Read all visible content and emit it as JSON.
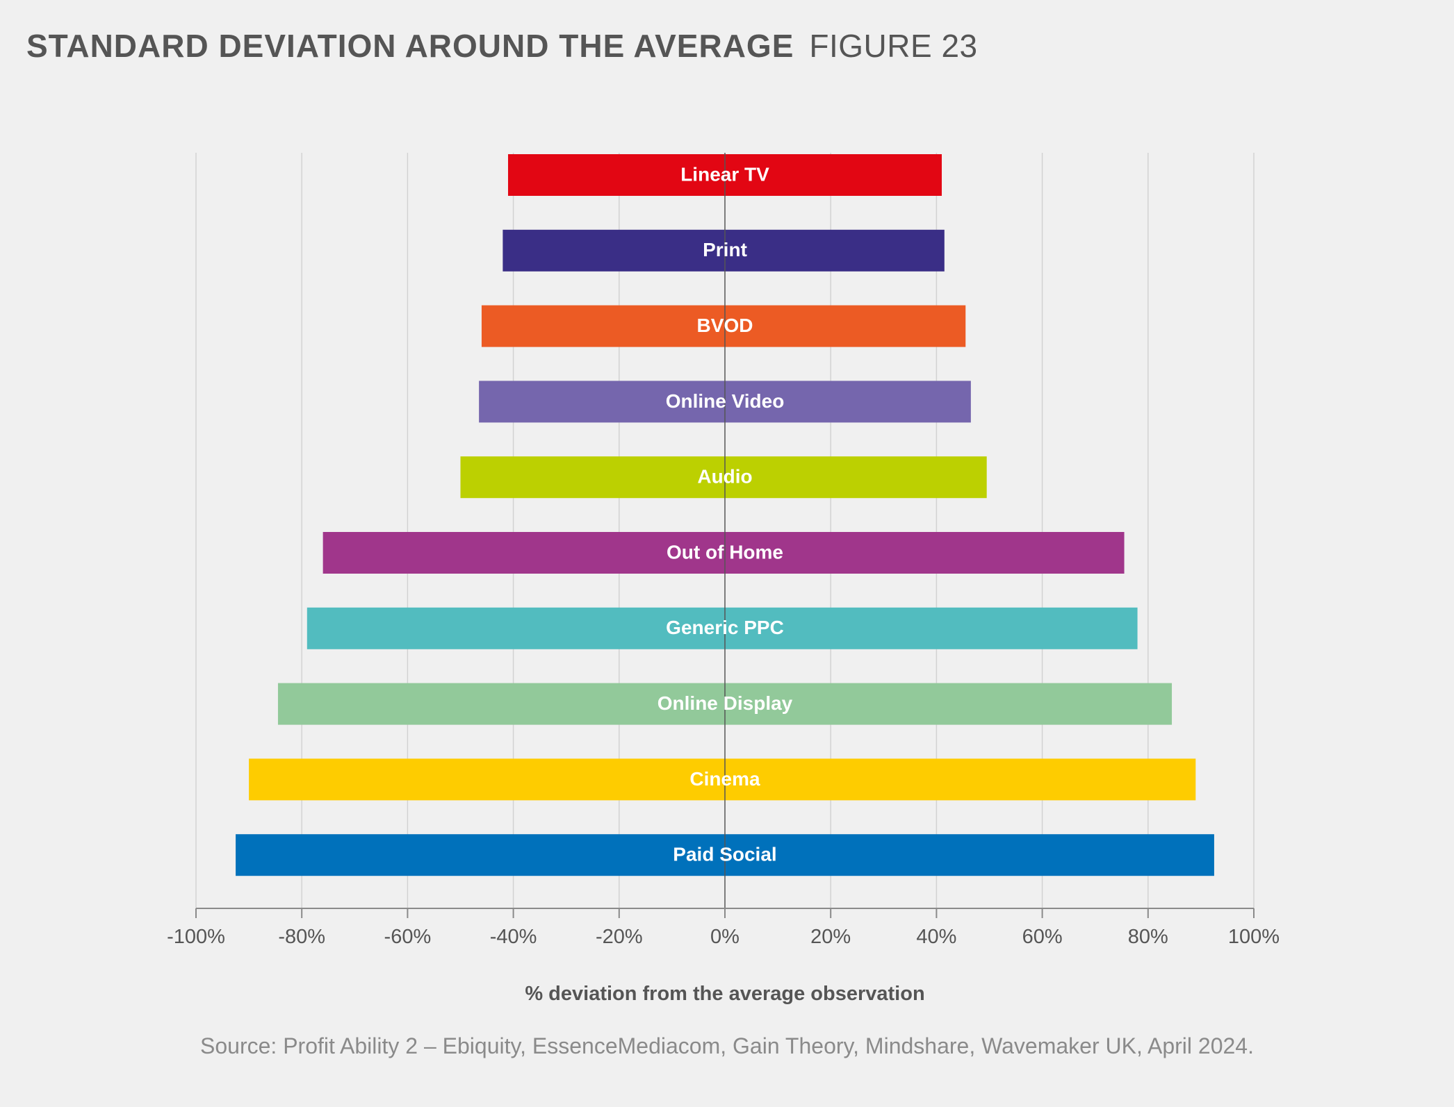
{
  "heading": {
    "title": "STANDARD DEVIATION AROUND THE AVERAGE",
    "figure_label": "FIGURE 23"
  },
  "source": "Source: Profit Ability 2 – Ebiquity, EssenceMediacom, Gain Theory, Mindshare, Wavemaker UK, April 2024.",
  "chart_data": {
    "type": "bar",
    "orientation": "horizontal",
    "subtype": "floating range (min to max)",
    "title": "STANDARD DEVIATION AROUND THE AVERAGE",
    "xlabel": "% deviation from the average observation",
    "ylabel": "",
    "xlim": [
      -100,
      100
    ],
    "x_ticks": [
      -100,
      -80,
      -60,
      -40,
      -20,
      0,
      20,
      40,
      60,
      80,
      100
    ],
    "x_tick_labels": [
      "-100%",
      "-80%",
      "-60%",
      "-40%",
      "-20%",
      "0%",
      "20%",
      "40%",
      "60%",
      "80%",
      "100%"
    ],
    "grid": "vertical gridlines at each tick",
    "legend": "none; labels inside bars",
    "categories": [
      "Linear TV",
      "Print",
      "BVOD",
      "Online Video",
      "Audio",
      "Out of Home",
      "Generic PPC",
      "Online Display",
      "Cinema",
      "Paid Social"
    ],
    "ranges": [
      {
        "label": "Linear TV",
        "low": -41,
        "high": 41,
        "color": "#e20613"
      },
      {
        "label": "Print",
        "low": -42,
        "high": 41.5,
        "color": "#3a2e86"
      },
      {
        "label": "BVOD",
        "low": -46,
        "high": 45.5,
        "color": "#ec5b24"
      },
      {
        "label": "Online Video",
        "low": -46.5,
        "high": 46.5,
        "color": "#7566ad"
      },
      {
        "label": "Audio",
        "low": -50,
        "high": 49.5,
        "color": "#bcd001"
      },
      {
        "label": "Out of Home",
        "low": -76,
        "high": 75.5,
        "color": "#a0368b"
      },
      {
        "label": "Generic PPC",
        "low": -79,
        "high": 78,
        "color": "#52bcbf"
      },
      {
        "label": "Online Display",
        "low": -84.5,
        "high": 84.5,
        "color": "#92c99a"
      },
      {
        "label": "Cinema",
        "low": -90,
        "high": 89,
        "color": "#fecc00"
      },
      {
        "label": "Paid Social",
        "low": -92.5,
        "high": 92.5,
        "color": "#0071bb"
      }
    ]
  }
}
